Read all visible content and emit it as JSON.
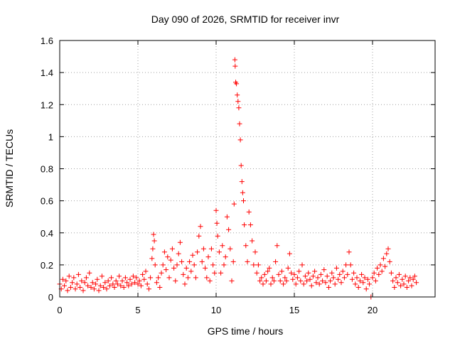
{
  "chart_data": {
    "type": "scatter",
    "title": "Day 090 of 2026, SRMTID for receiver invr",
    "xlabel": "GPS time / hours",
    "ylabel": "SRMTID / TECUs",
    "xlim": [
      0,
      24
    ],
    "ylim": [
      0,
      1.6
    ],
    "xticks": [
      0,
      5,
      10,
      15,
      20
    ],
    "xtick_labels": [
      "0",
      "5",
      "10",
      "15",
      "20"
    ],
    "yticks": [
      0,
      0.2,
      0.4,
      0.6,
      0.8,
      1,
      1.2,
      1.4,
      1.6
    ],
    "ytick_labels": [
      "0",
      "0.2",
      "0.4",
      "0.6",
      "0.8",
      "1",
      "1.2",
      "1.4",
      "1.6"
    ],
    "grid": true,
    "marker": "+",
    "series": [
      {
        "name": "SRMTID",
        "color": "#ff0000",
        "points": [
          [
            0.0,
            0.08
          ],
          [
            0.1,
            0.05
          ],
          [
            0.2,
            0.11
          ],
          [
            0.3,
            0.07
          ],
          [
            0.4,
            0.1
          ],
          [
            0.5,
            0.04
          ],
          [
            0.6,
            0.13
          ],
          [
            0.7,
            0.06
          ],
          [
            0.8,
            0.09
          ],
          [
            0.9,
            0.12
          ],
          [
            1.0,
            0.05
          ],
          [
            1.1,
            0.08
          ],
          [
            1.2,
            0.14
          ],
          [
            1.3,
            0.06
          ],
          [
            1.4,
            0.1
          ],
          [
            1.5,
            0.04
          ],
          [
            1.6,
            0.09
          ],
          [
            1.7,
            0.12
          ],
          [
            1.8,
            0.07
          ],
          [
            1.9,
            0.15
          ],
          [
            2.0,
            0.06
          ],
          [
            2.1,
            0.09
          ],
          [
            2.2,
            0.05
          ],
          [
            2.3,
            0.08
          ],
          [
            2.4,
            0.11
          ],
          [
            2.5,
            0.04
          ],
          [
            2.6,
            0.07
          ],
          [
            2.7,
            0.13
          ],
          [
            2.8,
            0.06
          ],
          [
            2.9,
            0.09
          ],
          [
            3.0,
            0.05
          ],
          [
            3.1,
            0.1
          ],
          [
            3.2,
            0.07
          ],
          [
            3.3,
            0.12
          ],
          [
            3.4,
            0.08
          ],
          [
            3.5,
            0.06
          ],
          [
            3.6,
            0.1
          ],
          [
            3.7,
            0.08
          ],
          [
            3.8,
            0.13
          ],
          [
            3.9,
            0.07
          ],
          [
            4.0,
            0.1
          ],
          [
            4.1,
            0.06
          ],
          [
            4.2,
            0.12
          ],
          [
            4.3,
            0.09
          ],
          [
            4.4,
            0.07
          ],
          [
            4.5,
            0.11
          ],
          [
            4.6,
            0.08
          ],
          [
            4.7,
            0.13
          ],
          [
            4.8,
            0.09
          ],
          [
            4.9,
            0.12
          ],
          [
            5.0,
            0.08
          ],
          [
            5.1,
            0.1
          ],
          [
            5.2,
            0.07
          ],
          [
            5.3,
            0.14
          ],
          [
            5.4,
            0.11
          ],
          [
            5.5,
            0.16
          ],
          [
            5.6,
            0.08
          ],
          [
            5.7,
            0.05
          ],
          [
            5.8,
            0.12
          ],
          [
            5.9,
            0.24
          ],
          [
            5.95,
            0.3
          ],
          [
            6.0,
            0.39
          ],
          [
            6.05,
            0.35
          ],
          [
            6.1,
            0.2
          ],
          [
            6.2,
            0.09
          ],
          [
            6.3,
            0.12
          ],
          [
            6.4,
            0.06
          ],
          [
            6.5,
            0.15
          ],
          [
            6.6,
            0.2
          ],
          [
            6.7,
            0.28
          ],
          [
            6.8,
            0.17
          ],
          [
            6.9,
            0.25
          ],
          [
            7.0,
            0.12
          ],
          [
            7.1,
            0.23
          ],
          [
            7.2,
            0.3
          ],
          [
            7.3,
            0.18
          ],
          [
            7.4,
            0.1
          ],
          [
            7.5,
            0.2
          ],
          [
            7.6,
            0.27
          ],
          [
            7.7,
            0.34
          ],
          [
            7.8,
            0.22
          ],
          [
            7.9,
            0.14
          ],
          [
            8.0,
            0.08
          ],
          [
            8.1,
            0.18
          ],
          [
            8.2,
            0.12
          ],
          [
            8.3,
            0.22
          ],
          [
            8.4,
            0.16
          ],
          [
            8.5,
            0.26
          ],
          [
            8.6,
            0.2
          ],
          [
            8.7,
            0.12
          ],
          [
            8.8,
            0.28
          ],
          [
            8.9,
            0.38
          ],
          [
            9.0,
            0.44
          ],
          [
            9.1,
            0.22
          ],
          [
            9.2,
            0.3
          ],
          [
            9.3,
            0.18
          ],
          [
            9.4,
            0.12
          ],
          [
            9.5,
            0.25
          ],
          [
            9.6,
            0.1
          ],
          [
            9.7,
            0.3
          ],
          [
            9.8,
            0.2
          ],
          [
            9.9,
            0.15
          ],
          [
            10.0,
            0.54
          ],
          [
            10.05,
            0.46
          ],
          [
            10.1,
            0.38
          ],
          [
            10.2,
            0.28
          ],
          [
            10.3,
            0.15
          ],
          [
            10.4,
            0.32
          ],
          [
            10.5,
            0.2
          ],
          [
            10.6,
            0.25
          ],
          [
            10.7,
            0.5
          ],
          [
            10.8,
            0.42
          ],
          [
            10.9,
            0.3
          ],
          [
            11.0,
            0.1
          ],
          [
            11.1,
            0.22
          ],
          [
            11.15,
            0.58
          ],
          [
            11.2,
            1.48
          ],
          [
            11.22,
            1.44
          ],
          [
            11.25,
            1.34
          ],
          [
            11.3,
            1.33
          ],
          [
            11.35,
            1.26
          ],
          [
            11.4,
            1.22
          ],
          [
            11.45,
            1.18
          ],
          [
            11.5,
            1.08
          ],
          [
            11.55,
            0.98
          ],
          [
            11.6,
            0.82
          ],
          [
            11.65,
            0.72
          ],
          [
            11.7,
            0.65
          ],
          [
            11.75,
            0.6
          ],
          [
            11.8,
            0.45
          ],
          [
            11.9,
            0.32
          ],
          [
            12.0,
            0.22
          ],
          [
            12.1,
            0.53
          ],
          [
            12.2,
            0.45
          ],
          [
            12.3,
            0.35
          ],
          [
            12.4,
            0.2
          ],
          [
            12.5,
            0.28
          ],
          [
            12.6,
            0.15
          ],
          [
            12.7,
            0.2
          ],
          [
            12.8,
            0.1
          ],
          [
            12.9,
            0.12
          ],
          [
            13.0,
            0.08
          ],
          [
            13.1,
            0.14
          ],
          [
            13.2,
            0.1
          ],
          [
            13.3,
            0.16
          ],
          [
            13.4,
            0.18
          ],
          [
            13.5,
            0.08
          ],
          [
            13.6,
            0.12
          ],
          [
            13.7,
            0.1
          ],
          [
            13.8,
            0.22
          ],
          [
            13.9,
            0.32
          ],
          [
            14.0,
            0.14
          ],
          [
            14.1,
            0.1
          ],
          [
            14.2,
            0.16
          ],
          [
            14.3,
            0.08
          ],
          [
            14.4,
            0.12
          ],
          [
            14.5,
            0.1
          ],
          [
            14.6,
            0.18
          ],
          [
            14.7,
            0.27
          ],
          [
            14.8,
            0.15
          ],
          [
            14.9,
            0.11
          ],
          [
            15.0,
            0.14
          ],
          [
            15.1,
            0.08
          ],
          [
            15.2,
            0.12
          ],
          [
            15.3,
            0.16
          ],
          [
            15.4,
            0.1
          ],
          [
            15.5,
            0.2
          ],
          [
            15.6,
            0.08
          ],
          [
            15.7,
            0.13
          ],
          [
            15.8,
            0.1
          ],
          [
            15.9,
            0.15
          ],
          [
            16.0,
            0.11
          ],
          [
            16.1,
            0.07
          ],
          [
            16.2,
            0.13
          ],
          [
            16.3,
            0.16
          ],
          [
            16.4,
            0.09
          ],
          [
            16.5,
            0.12
          ],
          [
            16.6,
            0.08
          ],
          [
            16.7,
            0.14
          ],
          [
            16.8,
            0.1
          ],
          [
            16.9,
            0.17
          ],
          [
            17.0,
            0.09
          ],
          [
            17.1,
            0.13
          ],
          [
            17.2,
            0.06
          ],
          [
            17.3,
            0.1
          ],
          [
            17.4,
            0.15
          ],
          [
            17.5,
            0.12
          ],
          [
            17.6,
            0.08
          ],
          [
            17.7,
            0.18
          ],
          [
            17.8,
            0.11
          ],
          [
            17.9,
            0.14
          ],
          [
            18.0,
            0.09
          ],
          [
            18.1,
            0.16
          ],
          [
            18.2,
            0.12
          ],
          [
            18.3,
            0.2
          ],
          [
            18.4,
            0.14
          ],
          [
            18.5,
            0.28
          ],
          [
            18.6,
            0.2
          ],
          [
            18.7,
            0.11
          ],
          [
            18.8,
            0.15
          ],
          [
            18.9,
            0.08
          ],
          [
            19.0,
            0.12
          ],
          [
            19.1,
            0.06
          ],
          [
            19.2,
            0.1
          ],
          [
            19.3,
            0.14
          ],
          [
            19.4,
            0.09
          ],
          [
            19.5,
            0.12
          ],
          [
            19.6,
            0.05
          ],
          [
            19.7,
            0.11
          ],
          [
            19.8,
            0.08
          ],
          [
            19.9,
            0.0
          ],
          [
            20.0,
            0.12
          ],
          [
            20.1,
            0.15
          ],
          [
            20.2,
            0.1
          ],
          [
            20.3,
            0.18
          ],
          [
            20.4,
            0.14
          ],
          [
            20.5,
            0.2
          ],
          [
            20.6,
            0.16
          ],
          [
            20.7,
            0.24
          ],
          [
            20.8,
            0.19
          ],
          [
            20.9,
            0.27
          ],
          [
            21.0,
            0.3
          ],
          [
            21.1,
            0.22
          ],
          [
            21.2,
            0.15
          ],
          [
            21.3,
            0.1
          ],
          [
            21.4,
            0.06
          ],
          [
            21.5,
            0.12
          ],
          [
            21.6,
            0.09
          ],
          [
            21.7,
            0.14
          ],
          [
            21.8,
            0.07
          ],
          [
            21.9,
            0.11
          ],
          [
            22.0,
            0.08
          ],
          [
            22.1,
            0.13
          ],
          [
            22.2,
            0.06
          ],
          [
            22.3,
            0.1
          ],
          [
            22.4,
            0.12
          ],
          [
            22.5,
            0.07
          ],
          [
            22.6,
            0.11
          ],
          [
            22.7,
            0.13
          ],
          [
            22.8,
            0.09
          ]
        ]
      }
    ]
  }
}
